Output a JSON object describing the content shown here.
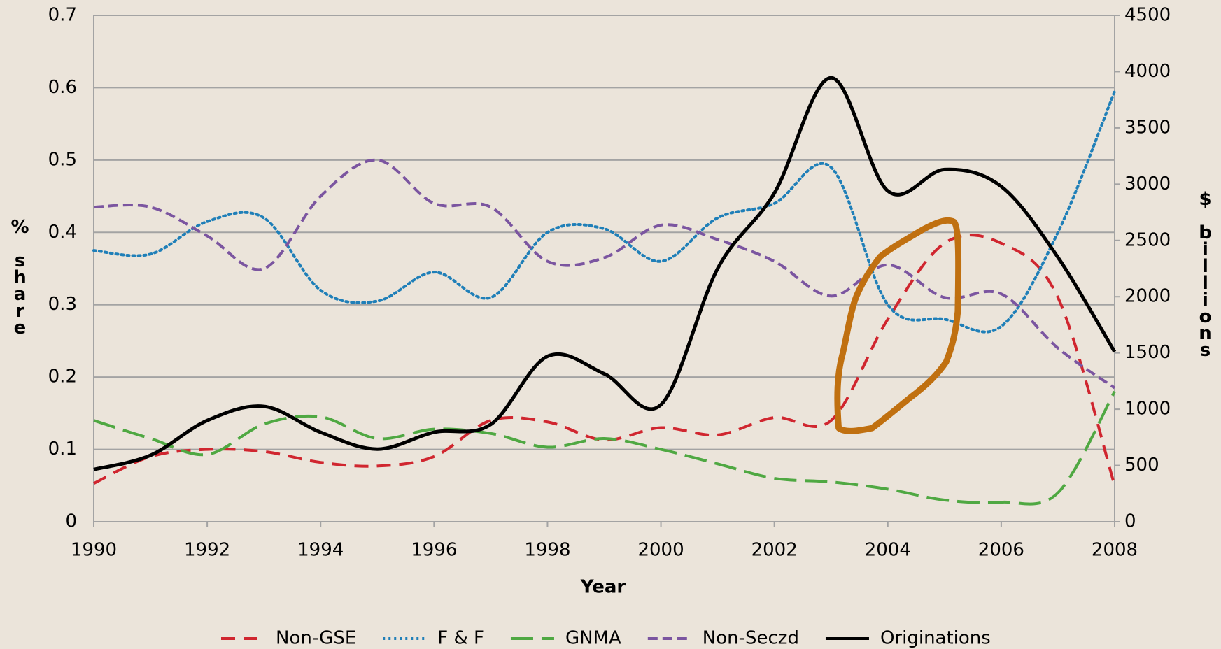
{
  "chart_data": {
    "type": "line",
    "x_label": "Year",
    "y_label": "% share",
    "y2_label": "$ billions",
    "x": [
      1990,
      1991,
      1992,
      1993,
      1994,
      1995,
      1996,
      1997,
      1998,
      1999,
      2000,
      2001,
      2002,
      2003,
      2004,
      2005,
      2006,
      2007,
      2008
    ],
    "xlim": [
      1990,
      2008
    ],
    "xticks": [
      1990,
      1992,
      1994,
      1996,
      1998,
      2000,
      2002,
      2004,
      2006,
      2008
    ],
    "ylim": [
      0,
      0.7
    ],
    "yticks": [
      0,
      0.1,
      0.2,
      0.3,
      0.4,
      0.5,
      0.6,
      0.7
    ],
    "y2lim": [
      0,
      4500
    ],
    "y2ticks": [
      0,
      500,
      1000,
      1500,
      2000,
      2500,
      3000,
      3500,
      4000,
      4500
    ],
    "grid": true,
    "legend": "bottom",
    "series": [
      {
        "name": "Non-GSE",
        "color": "#d0262f",
        "line_style": "dashed",
        "values": [
          0.053,
          0.09,
          0.1,
          0.097,
          0.082,
          0.077,
          0.09,
          0.14,
          0.138,
          0.113,
          0.13,
          0.12,
          0.144,
          0.14,
          0.28,
          0.385,
          0.385,
          0.31,
          0.05
        ]
      },
      {
        "name": "F & F",
        "color": "#1f7fb8",
        "line_style": "dotted",
        "values": [
          0.375,
          0.37,
          0.415,
          0.42,
          0.32,
          0.305,
          0.345,
          0.31,
          0.4,
          0.405,
          0.36,
          0.42,
          0.44,
          0.49,
          0.3,
          0.28,
          0.27,
          0.4,
          0.595
        ]
      },
      {
        "name": "GNMA",
        "color": "#4fa842",
        "line_style": "long-dashed",
        "values": [
          0.14,
          0.115,
          0.093,
          0.135,
          0.145,
          0.115,
          0.128,
          0.122,
          0.103,
          0.115,
          0.1,
          0.08,
          0.06,
          0.055,
          0.045,
          0.03,
          0.027,
          0.04,
          0.18
        ]
      },
      {
        "name": "Non-Seczd",
        "color": "#7b55a0",
        "line_style": "short-dashed",
        "values": [
          0.435,
          0.435,
          0.395,
          0.35,
          0.45,
          0.5,
          0.44,
          0.435,
          0.36,
          0.365,
          0.41,
          0.39,
          0.36,
          0.312,
          0.355,
          0.31,
          0.315,
          0.24,
          0.185
        ]
      },
      {
        "name": "Originations",
        "color": "#000000",
        "line_style": "solid",
        "axis": "y2",
        "values": [
          464,
          590,
          900,
          1025,
          795,
          645,
          795,
          865,
          1470,
          1315,
          1040,
          2250,
          2920,
          3945,
          2940,
          3130,
          2980,
          2350,
          1510
        ]
      }
    ]
  }
}
